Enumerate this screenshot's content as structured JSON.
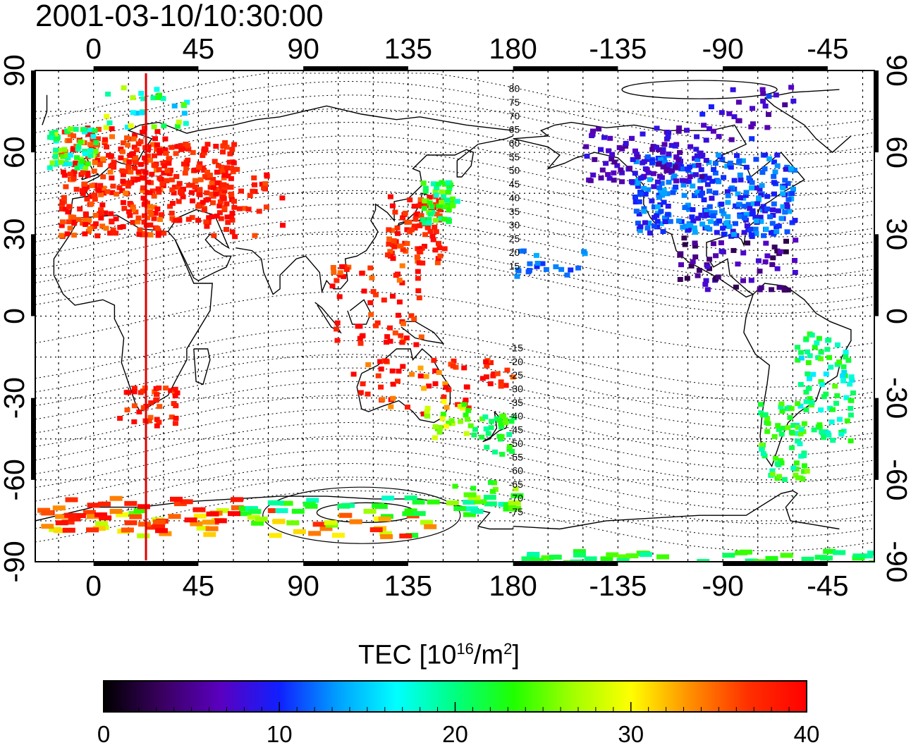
{
  "title": "2001-03-10/10:30:00",
  "map": {
    "lon_ticks_labels": [
      "0",
      "45",
      "90",
      "135",
      "180",
      "-135",
      "-90",
      "-45"
    ],
    "lat_ticks_labels": [
      "90",
      "60",
      "30",
      "0",
      "-30",
      "-60",
      "-90"
    ],
    "magnetic_lat_labels": [
      "80",
      "75",
      "70",
      "65",
      "60",
      "55",
      "50",
      "45",
      "40",
      "35",
      "30",
      "25",
      "20",
      "15",
      "-15",
      "-20",
      "-25",
      "-30",
      "-35",
      "-40",
      "-45",
      "-50",
      "-55",
      "-60",
      "-65",
      "-70",
      "-75"
    ],
    "meridian_marker_lon": 22.5,
    "meridian_marker_color": "#e00000",
    "coastline_color": "#000000",
    "grid": true
  },
  "colorbar": {
    "title_pre": "TEC  [10",
    "title_sup1": "16",
    "title_mid": "/m",
    "title_sup2": "2",
    "title_post": "]",
    "min": 0,
    "max": 40,
    "tick_labels": [
      "0",
      "10",
      "20",
      "30",
      "40"
    ],
    "colors": [
      "#000000",
      "#3a0060",
      "#5a00c0",
      "#1020ff",
      "#00a0ff",
      "#00ffff",
      "#00ff80",
      "#20ff00",
      "#a0ff00",
      "#ffff00",
      "#ff9000",
      "#ff3000",
      "#ff0000"
    ]
  }
}
